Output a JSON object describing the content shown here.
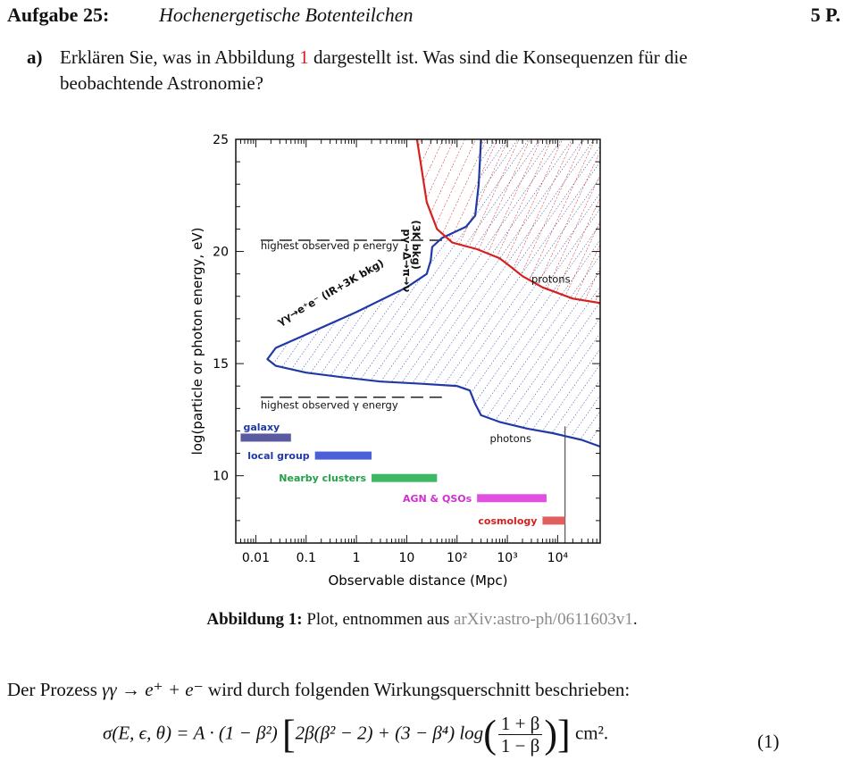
{
  "header": {
    "task_number": "Aufgabe 25:",
    "task_title": "Hochenergetische Botenteilchen",
    "points": "5 P."
  },
  "question_a": {
    "label": "a)",
    "text_before": "Erklären Sie, was in Abbildung ",
    "figure_ref": "1",
    "text_after": " dargestellt ist. Was sind die Konsequenzen für die beobachtende Astronomie?"
  },
  "caption": {
    "label": "Abbildung 1:",
    "text": " Plot, entnommen aus ",
    "source": "arXiv:astro-ph/0611603v1",
    "end": "."
  },
  "intro": {
    "before": "Der Prozess ",
    "process": "γγ → e⁺ + e⁻",
    "after": " wird durch folgenden Wirkungsquerschnitt beschrieben:"
  },
  "equation": {
    "lhs": "σ(E, ϵ, θ) = A · (1 − β²)",
    "bracket_part1": "2β(β² − 2) + (3 − β⁴) log",
    "frac_num": "1 + β",
    "frac_den": "1 − β",
    "unit": "cm².",
    "number": "(1)"
  },
  "chart_data": {
    "type": "area",
    "xlabel": "Observable distance (Mpc)",
    "ylabel": "log(particle or photon energy, eV)",
    "xscale": "log",
    "xlim": [
      0.004,
      70000
    ],
    "ylim": [
      7,
      25
    ],
    "xticks": [
      "0.01",
      "0.1",
      "1",
      "10",
      "10²",
      "10³",
      "10⁴"
    ],
    "xtick_values": [
      0.01,
      0.1,
      1,
      10,
      100,
      1000,
      10000
    ],
    "yticks": [
      "10",
      "15",
      "20",
      "25"
    ],
    "ytick_values": [
      10,
      15,
      20,
      25
    ],
    "series": [
      {
        "name": "photons",
        "color": "#1f3aa6",
        "points": [
          [
            70000,
            11.3
          ],
          [
            30000,
            11.6
          ],
          [
            8000,
            11.9
          ],
          [
            2500,
            12.1
          ],
          [
            700,
            12.4
          ],
          [
            300,
            12.7
          ],
          [
            230,
            13.2
          ],
          [
            180,
            13.8
          ],
          [
            100,
            14.0
          ],
          [
            20,
            14.1
          ],
          [
            3,
            14.2
          ],
          [
            0.5,
            14.4
          ],
          [
            0.1,
            14.6
          ],
          [
            0.025,
            14.9
          ],
          [
            0.017,
            15.2
          ],
          [
            0.025,
            15.7
          ],
          [
            0.1,
            16.3
          ],
          [
            1,
            17.3
          ],
          [
            10,
            18.4
          ],
          [
            25,
            19.0
          ],
          [
            30,
            19.6
          ],
          [
            32,
            20.2
          ],
          [
            50,
            20.6
          ],
          [
            150,
            21.1
          ],
          [
            230,
            21.6
          ],
          [
            270,
            23
          ],
          [
            300,
            25
          ]
        ]
      },
      {
        "name": "protons",
        "color": "#d62020",
        "points": [
          [
            16,
            25
          ],
          [
            20,
            23.6
          ],
          [
            25,
            22.2
          ],
          [
            40,
            21
          ],
          [
            80,
            20.4
          ],
          [
            250,
            20.1
          ],
          [
            700,
            19.7
          ],
          [
            1200,
            19.3
          ],
          [
            2000,
            18.9
          ],
          [
            5000,
            18.4
          ],
          [
            20000,
            17.9
          ],
          [
            70000,
            17.7
          ]
        ]
      }
    ],
    "hatch_colors": {
      "photons": "#1f3aa6",
      "protons": "#d62020"
    },
    "annotations": [
      {
        "text": "highest observed p energy",
        "x": 0.0125,
        "y": 20.1
      },
      {
        "text": "highest observed γ energy",
        "x": 0.0125,
        "y": 13.0
      },
      {
        "text": "γγ→e⁺e⁻ (IR+3K bkg)",
        "x": 0.03,
        "y": 16.7,
        "rotate": -30
      },
      {
        "text": "pγ→Δ→π→ν",
        "x": 8.5,
        "y": 21.0,
        "rotate": 90
      },
      {
        "text": "(3K bkg)",
        "x": 13,
        "y": 21.4,
        "rotate": 90
      },
      {
        "text": "photons",
        "x": 450,
        "y": 11.5
      },
      {
        "text": "protons",
        "x": 3000,
        "y": 18.6
      }
    ],
    "reference_lines": [
      {
        "label_ref": "highest observed p energy",
        "y": 20.5,
        "x_range": [
          0.0125,
          60
        ],
        "style": "dashed"
      },
      {
        "label_ref": "highest observed γ energy",
        "y": 13.5,
        "x_range": [
          0.0125,
          50
        ],
        "style": "dashed"
      },
      {
        "x": 14000,
        "y_range": [
          7,
          12.2
        ],
        "style": "solid",
        "color": "#555555"
      }
    ],
    "range_bars": [
      {
        "label": "galaxy",
        "x_range": [
          0.005,
          0.05
        ],
        "y": 11.7,
        "color": "#5a5aa0",
        "label_color": "#1f3aa6",
        "label_side": "above"
      },
      {
        "label": "local group",
        "x_range": [
          0.15,
          2
        ],
        "y": 10.9,
        "color": "#4b5fd8",
        "label_color": "#1f3aa6",
        "label_side": "left"
      },
      {
        "label": "Nearby clusters",
        "x_range": [
          2,
          40
        ],
        "y": 9.9,
        "color": "#3fb863",
        "label_color": "#21a046",
        "label_side": "left"
      },
      {
        "label": "AGN & QSOs",
        "x_range": [
          250,
          6000
        ],
        "y": 9.0,
        "color": "#e04fe0",
        "label_color": "#d030d0",
        "label_side": "left"
      },
      {
        "label": "cosmology",
        "x_range": [
          5000,
          14000
        ],
        "y": 8.0,
        "color": "#e06060",
        "label_color": "#d62020",
        "label_side": "left"
      }
    ]
  }
}
